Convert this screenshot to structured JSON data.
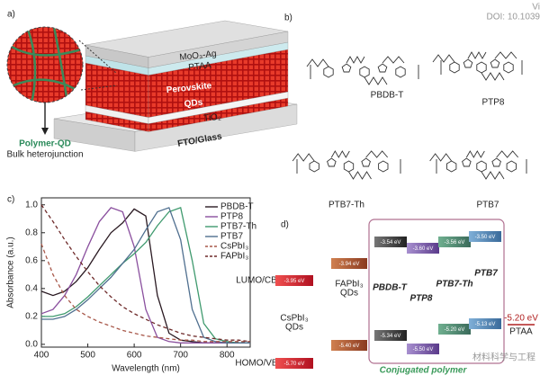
{
  "panel_a": {
    "label": "a)",
    "top": "MoO₃-Ag",
    "htl": "PTAA",
    "absorber": [
      "Perovskite",
      "QDs"
    ],
    "etl": "TiO₂",
    "substrate": "FTO/Glass",
    "inset_title": "Polymer-QD",
    "inset_subtitle": "Bulk heterojunction"
  },
  "panel_b": {
    "label": "b)",
    "doi": "DOI: 10.1039",
    "corner": "Vi",
    "structures": [
      "PBDB-T",
      "PTP8",
      "PTB7-Th",
      "PTB7"
    ]
  },
  "chart_data": {
    "type": "line",
    "label": "c)",
    "x_label": "Wavelength (nm)",
    "y_label": "Absorbance (a.u.)",
    "x": [
      400,
      425,
      450,
      475,
      500,
      525,
      550,
      575,
      600,
      625,
      650,
      675,
      700,
      725,
      750,
      775,
      800,
      825,
      850
    ],
    "series": [
      {
        "name": "PBDB-T",
        "color": "#2a1a22",
        "dash": false,
        "values": [
          0.38,
          0.35,
          0.38,
          0.45,
          0.55,
          0.68,
          0.8,
          0.87,
          0.97,
          0.92,
          0.35,
          0.08,
          0.03,
          0.02,
          0.01,
          0.01,
          0.01,
          0.01,
          0.01
        ]
      },
      {
        "name": "PTP8",
        "color": "#8a4f9e",
        "dash": false,
        "values": [
          0.22,
          0.25,
          0.35,
          0.5,
          0.7,
          0.88,
          0.98,
          0.95,
          0.7,
          0.25,
          0.05,
          0.02,
          0.01,
          0.01,
          0.01,
          0.01,
          0.01,
          0.01,
          0.01
        ]
      },
      {
        "name": "PTB7-Th",
        "color": "#3f9a6e",
        "dash": false,
        "values": [
          0.2,
          0.2,
          0.22,
          0.27,
          0.34,
          0.42,
          0.5,
          0.58,
          0.65,
          0.73,
          0.85,
          0.95,
          0.98,
          0.6,
          0.15,
          0.04,
          0.02,
          0.01,
          0.01
        ]
      },
      {
        "name": "PTB7",
        "color": "#4f6f8f",
        "dash": false,
        "values": [
          0.18,
          0.18,
          0.2,
          0.25,
          0.32,
          0.4,
          0.48,
          0.58,
          0.68,
          0.82,
          0.95,
          0.98,
          0.75,
          0.25,
          0.05,
          0.02,
          0.01,
          0.01,
          0.01
        ]
      },
      {
        "name": "CsPbI₃",
        "color": "#a8584a",
        "dash": true,
        "values": [
          0.72,
          0.5,
          0.35,
          0.25,
          0.2,
          0.16,
          0.13,
          0.1,
          0.08,
          0.06,
          0.05,
          0.04,
          0.03,
          0.03,
          0.02,
          0.02,
          0.02,
          0.02,
          0.02
        ]
      },
      {
        "name": "FAPbI₃",
        "color": "#6e2a2a",
        "dash": true,
        "values": [
          1.0,
          0.88,
          0.75,
          0.63,
          0.52,
          0.42,
          0.34,
          0.27,
          0.22,
          0.18,
          0.14,
          0.11,
          0.08,
          0.06,
          0.05,
          0.04,
          0.03,
          0.03,
          0.02
        ]
      }
    ],
    "xlim": [
      400,
      850
    ],
    "xticks": [
      400,
      500,
      600,
      700,
      800
    ],
    "ylim": [
      -0.02,
      1.05
    ],
    "yticks": [
      {
        "value": 0,
        "label": "0.0"
      },
      0.2,
      0.4,
      0.6,
      0.8,
      {
        "value": 1,
        "label": "1.0"
      }
    ],
    "legend": "upper right"
  },
  "panel_d": {
    "label": "d)",
    "lumo_label": "LUMO/CB",
    "homo_label": "HOMO/VB",
    "qds": [
      {
        "name": [
          "CsPbI₃",
          "QDs"
        ],
        "lumo": "-3.95 eV",
        "homo": "-5.70 eV"
      },
      {
        "name": [
          "FAPbI₃",
          "QDs"
        ],
        "lumo": "-3.94 eV",
        "homo": "-5.40 eV"
      }
    ],
    "polymers": [
      {
        "name": "PBDB-T",
        "lumo": "-3.54 eV",
        "homo": "-5.34 eV"
      },
      {
        "name": "PTP8",
        "lumo": "-3.60 eV",
        "homo": "-5.50 eV"
      },
      {
        "name": "PTB7-Th",
        "lumo": "-3.56 eV",
        "homo": "-5.20 eV"
      },
      {
        "name": "PTB7",
        "lumo": "-3.50 eV",
        "homo": "-5.13 eV"
      }
    ],
    "ptaa": {
      "name": "PTAA",
      "level": "-5.20 eV"
    },
    "group_label": "Conjugated polymer",
    "watermark": "材料科学与工程"
  }
}
